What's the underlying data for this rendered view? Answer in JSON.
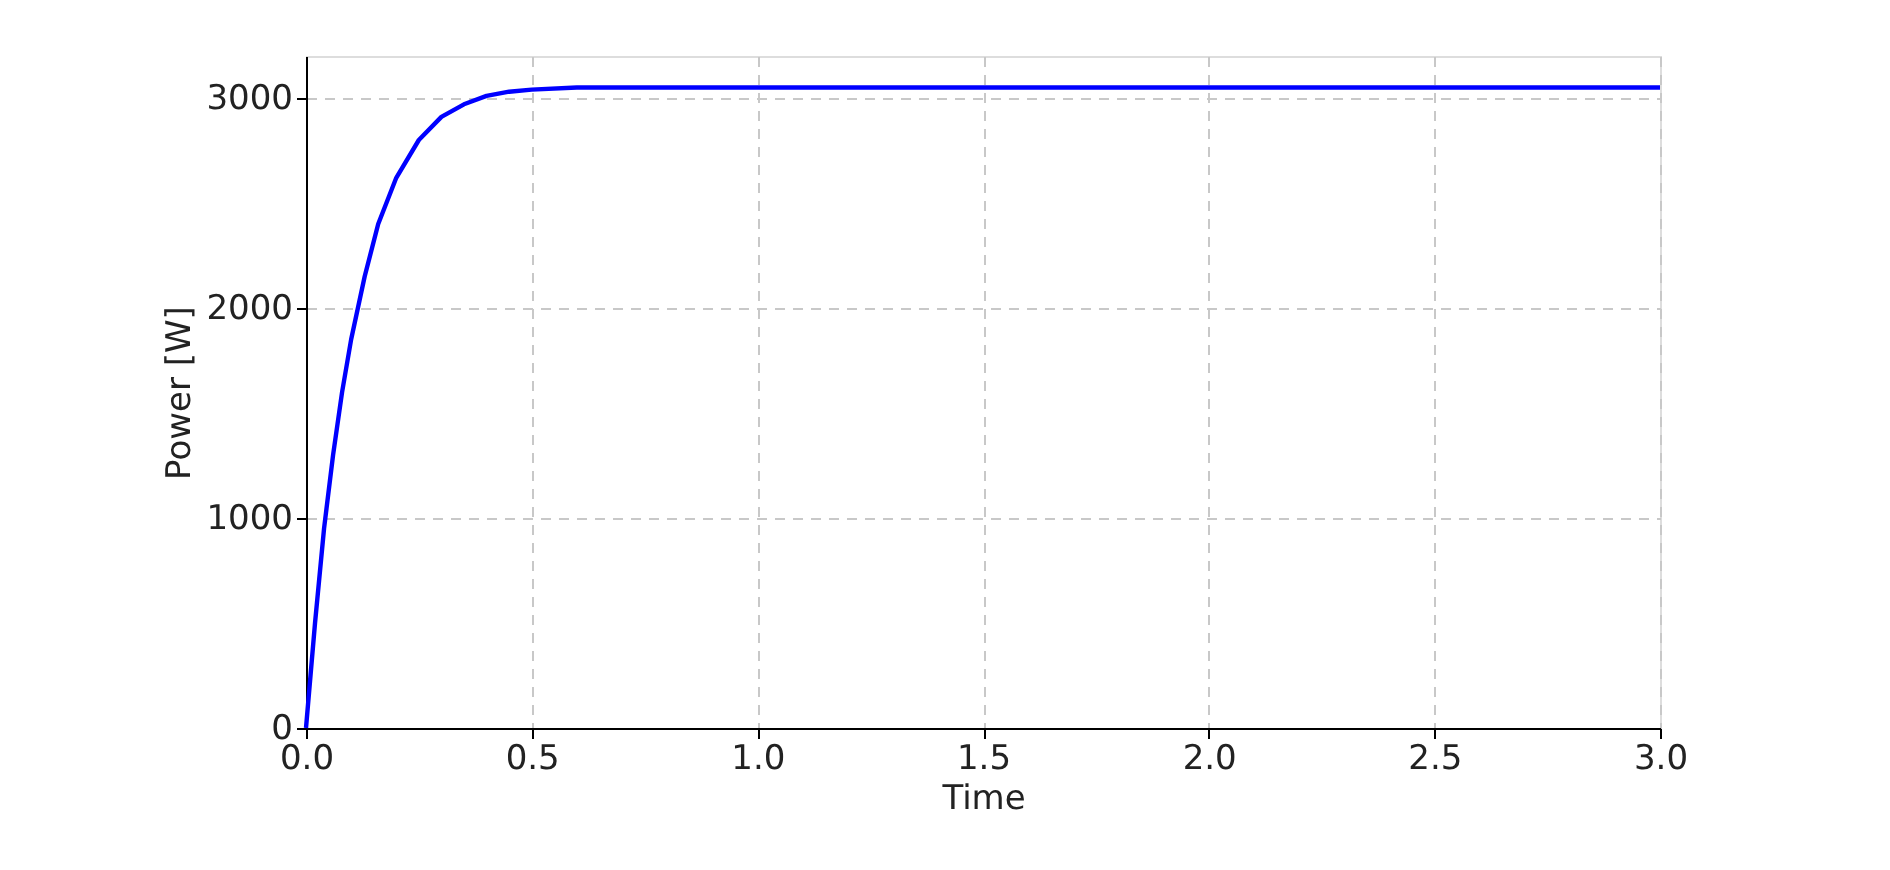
{
  "chart_data": {
    "type": "line",
    "xlabel": "Time",
    "ylabel": "Power [W]",
    "x": [
      0,
      0.01,
      0.02,
      0.04,
      0.06,
      0.08,
      0.1,
      0.13,
      0.16,
      0.2,
      0.25,
      0.3,
      0.35,
      0.4,
      0.45,
      0.5,
      0.6,
      0.7,
      0.8,
      1.0,
      1.5,
      2.0,
      2.5,
      3.0
    ],
    "series": [
      {
        "color": "#0000ff",
        "values": [
          0,
          250,
          500,
          950,
          1300,
          1600,
          1850,
          2150,
          2400,
          2620,
          2800,
          2910,
          2970,
          3010,
          3030,
          3040,
          3050,
          3050,
          3050,
          3050,
          3050,
          3050,
          3050,
          3050
        ]
      }
    ],
    "xlim": [
      0,
      3
    ],
    "ylim": [
      0,
      3200
    ],
    "xticks": [
      {
        "value": 0,
        "label": "0.0"
      },
      {
        "value": 0.5,
        "label": "0.5"
      },
      {
        "value": 1,
        "label": "1.0"
      },
      {
        "value": 1.5,
        "label": "1.5"
      },
      {
        "value": 2,
        "label": "2.0"
      },
      {
        "value": 2.5,
        "label": "2.5"
      },
      {
        "value": 3,
        "label": "3.0"
      }
    ],
    "yticks": [
      0,
      1000,
      2000,
      3000
    ],
    "grid": true,
    "marker": "none",
    "line_style": "solid"
  }
}
